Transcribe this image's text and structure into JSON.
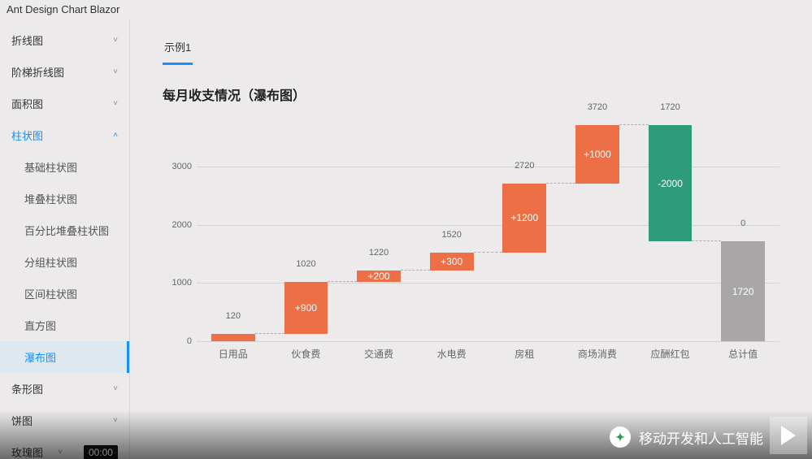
{
  "header": {
    "title": "Ant Design Chart Blazor"
  },
  "sidebar": {
    "items": [
      {
        "label": "折线图",
        "expandable": true
      },
      {
        "label": "阶梯折线图",
        "expandable": true
      },
      {
        "label": "面积图",
        "expandable": true
      },
      {
        "label": "柱状图",
        "expandable": true,
        "open": true
      },
      {
        "label": "基础柱状图",
        "child": true
      },
      {
        "label": "堆叠柱状图",
        "child": true
      },
      {
        "label": "百分比堆叠柱状图",
        "child": true
      },
      {
        "label": "分组柱状图",
        "child": true
      },
      {
        "label": "区间柱状图",
        "child": true
      },
      {
        "label": "直方图",
        "child": true
      },
      {
        "label": "瀑布图",
        "child": true,
        "active": true
      },
      {
        "label": "条形图",
        "expandable": true
      },
      {
        "label": "饼图",
        "expandable": true
      },
      {
        "label": "玫瑰图",
        "expandable": true,
        "time": "00:00"
      }
    ]
  },
  "main": {
    "tab": "示例1",
    "chart": {
      "title": "每月收支情况（瀑布图）",
      "type": "waterfall",
      "y_max": 3720,
      "y_ticks": [
        0,
        1000,
        2000,
        3000
      ],
      "colors": {
        "positive": "#ed6f45",
        "negative": "#2e9b7a",
        "total": "#a9a6a7"
      },
      "background": "#eceaeb",
      "grid_color": "#d6d3d4",
      "label_fontsize": 12,
      "categories": [
        "日用品",
        "伙食费",
        "交通费",
        "水电费",
        "房租",
        "商场消费",
        "应酬红包",
        "总计值"
      ],
      "bars": [
        {
          "start": 0,
          "end": 120,
          "top": 120,
          "delta": "",
          "kind": "positive"
        },
        {
          "start": 120,
          "end": 1020,
          "top": 1020,
          "delta": "+900",
          "kind": "positive"
        },
        {
          "start": 1020,
          "end": 1220,
          "top": 1220,
          "delta": "+200",
          "kind": "positive"
        },
        {
          "start": 1220,
          "end": 1520,
          "top": 1520,
          "delta": "+300",
          "kind": "positive"
        },
        {
          "start": 1520,
          "end": 2720,
          "top": 2720,
          "delta": "+1200",
          "kind": "positive"
        },
        {
          "start": 2720,
          "end": 3720,
          "top": 3720,
          "delta": "+1000",
          "kind": "positive"
        },
        {
          "start": 3720,
          "end": 1720,
          "top": 1720,
          "delta": "-2000",
          "kind": "negative"
        },
        {
          "start": 0,
          "end": 1720,
          "top": 0,
          "delta": "1720",
          "kind": "total"
        }
      ]
    }
  },
  "watermark": {
    "text": "移动开发和人工智能"
  }
}
